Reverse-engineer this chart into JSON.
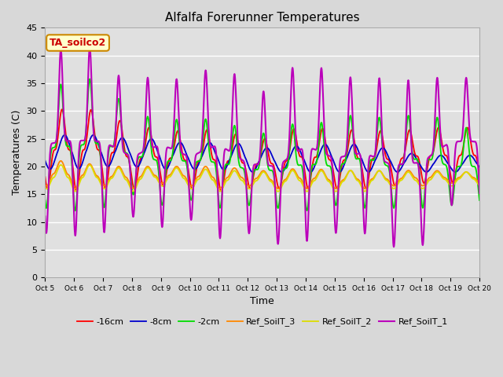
{
  "title": "Alfalfa Forerunner Temperatures",
  "xlabel": "Time",
  "ylabel": "Temperatures (C)",
  "ylim": [
    0,
    45
  ],
  "xlim": [
    0,
    360
  ],
  "fig_bg_color": "#d8d8d8",
  "plot_bg_color": "#e0e0e0",
  "annotation_text": "TA_soilco2",
  "annotation_color": "#cc0000",
  "annotation_bg": "#ffffcc",
  "annotation_edge": "#cc8800",
  "series": {
    "neg16cm": {
      "label": "-16cm",
      "color": "#ff0000"
    },
    "neg8cm": {
      "label": "-8cm",
      "color": "#0000cc"
    },
    "neg2cm": {
      "label": "-2cm",
      "color": "#00dd00"
    },
    "ref3": {
      "label": "Ref_SoilT_3",
      "color": "#ff8800"
    },
    "ref2": {
      "label": "Ref_SoilT_2",
      "color": "#dddd00"
    },
    "ref1": {
      "label": "Ref_SoilT_1",
      "color": "#bb00bb"
    }
  },
  "xtick_labels": [
    "Oct 5",
    "Oct 6",
    "Oct 7",
    "Oct 8",
    "Oct 9",
    "Oct 10",
    "Oct 11",
    "Oct 12",
    "Oct 13",
    "Oct 14",
    "Oct 15",
    "Oct 16",
    "Oct 17",
    "Oct 18",
    "Oct 19",
    "Oct 20"
  ],
  "xtick_positions": [
    0,
    24,
    48,
    72,
    96,
    120,
    144,
    168,
    192,
    216,
    240,
    264,
    288,
    312,
    336,
    360
  ],
  "ytick_labels": [
    "0",
    "5",
    "10",
    "15",
    "20",
    "25",
    "30",
    "35",
    "40",
    "45"
  ],
  "ytick_positions": [
    0,
    5,
    10,
    15,
    20,
    25,
    30,
    35,
    40,
    45
  ],
  "n_points": 1441,
  "hours_per_day": 24,
  "n_days": 15
}
